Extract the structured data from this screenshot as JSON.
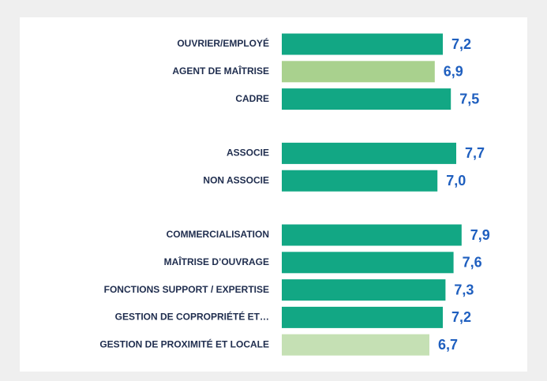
{
  "chart_data": {
    "type": "hbar",
    "categories": [
      "OUVRIER/EMPLOYÉ",
      "AGENT DE MAÎTRISE",
      "CADRE",
      "ASSOCIE",
      "NON ASSOCIE",
      "COMMERCIALISATION",
      "MAÎTRISE D’OUVRAGE",
      "FONCTIONS SUPPORT / EXPERTISE",
      "GESTION DE COPROPRIÉTÉ ET…",
      "GESTION DE PROXIMITÉ ET LOCALE"
    ],
    "values": [
      7.2,
      6.9,
      7.5,
      7.7,
      7.0,
      7.9,
      7.6,
      7.3,
      7.2,
      6.7
    ],
    "value_labels": [
      "7,2",
      "6,9",
      "7,5",
      "7,7",
      "7,0",
      "7,9",
      "7,6",
      "7,3",
      "7,2",
      "6,7"
    ],
    "colors": [
      "#12a784",
      "#a9d18e",
      "#12a784",
      "#12a784",
      "#12a784",
      "#12a784",
      "#12a784",
      "#12a784",
      "#12a784",
      "#c5e0b4"
    ],
    "xlim": [
      1.2,
      8.2
    ]
  }
}
